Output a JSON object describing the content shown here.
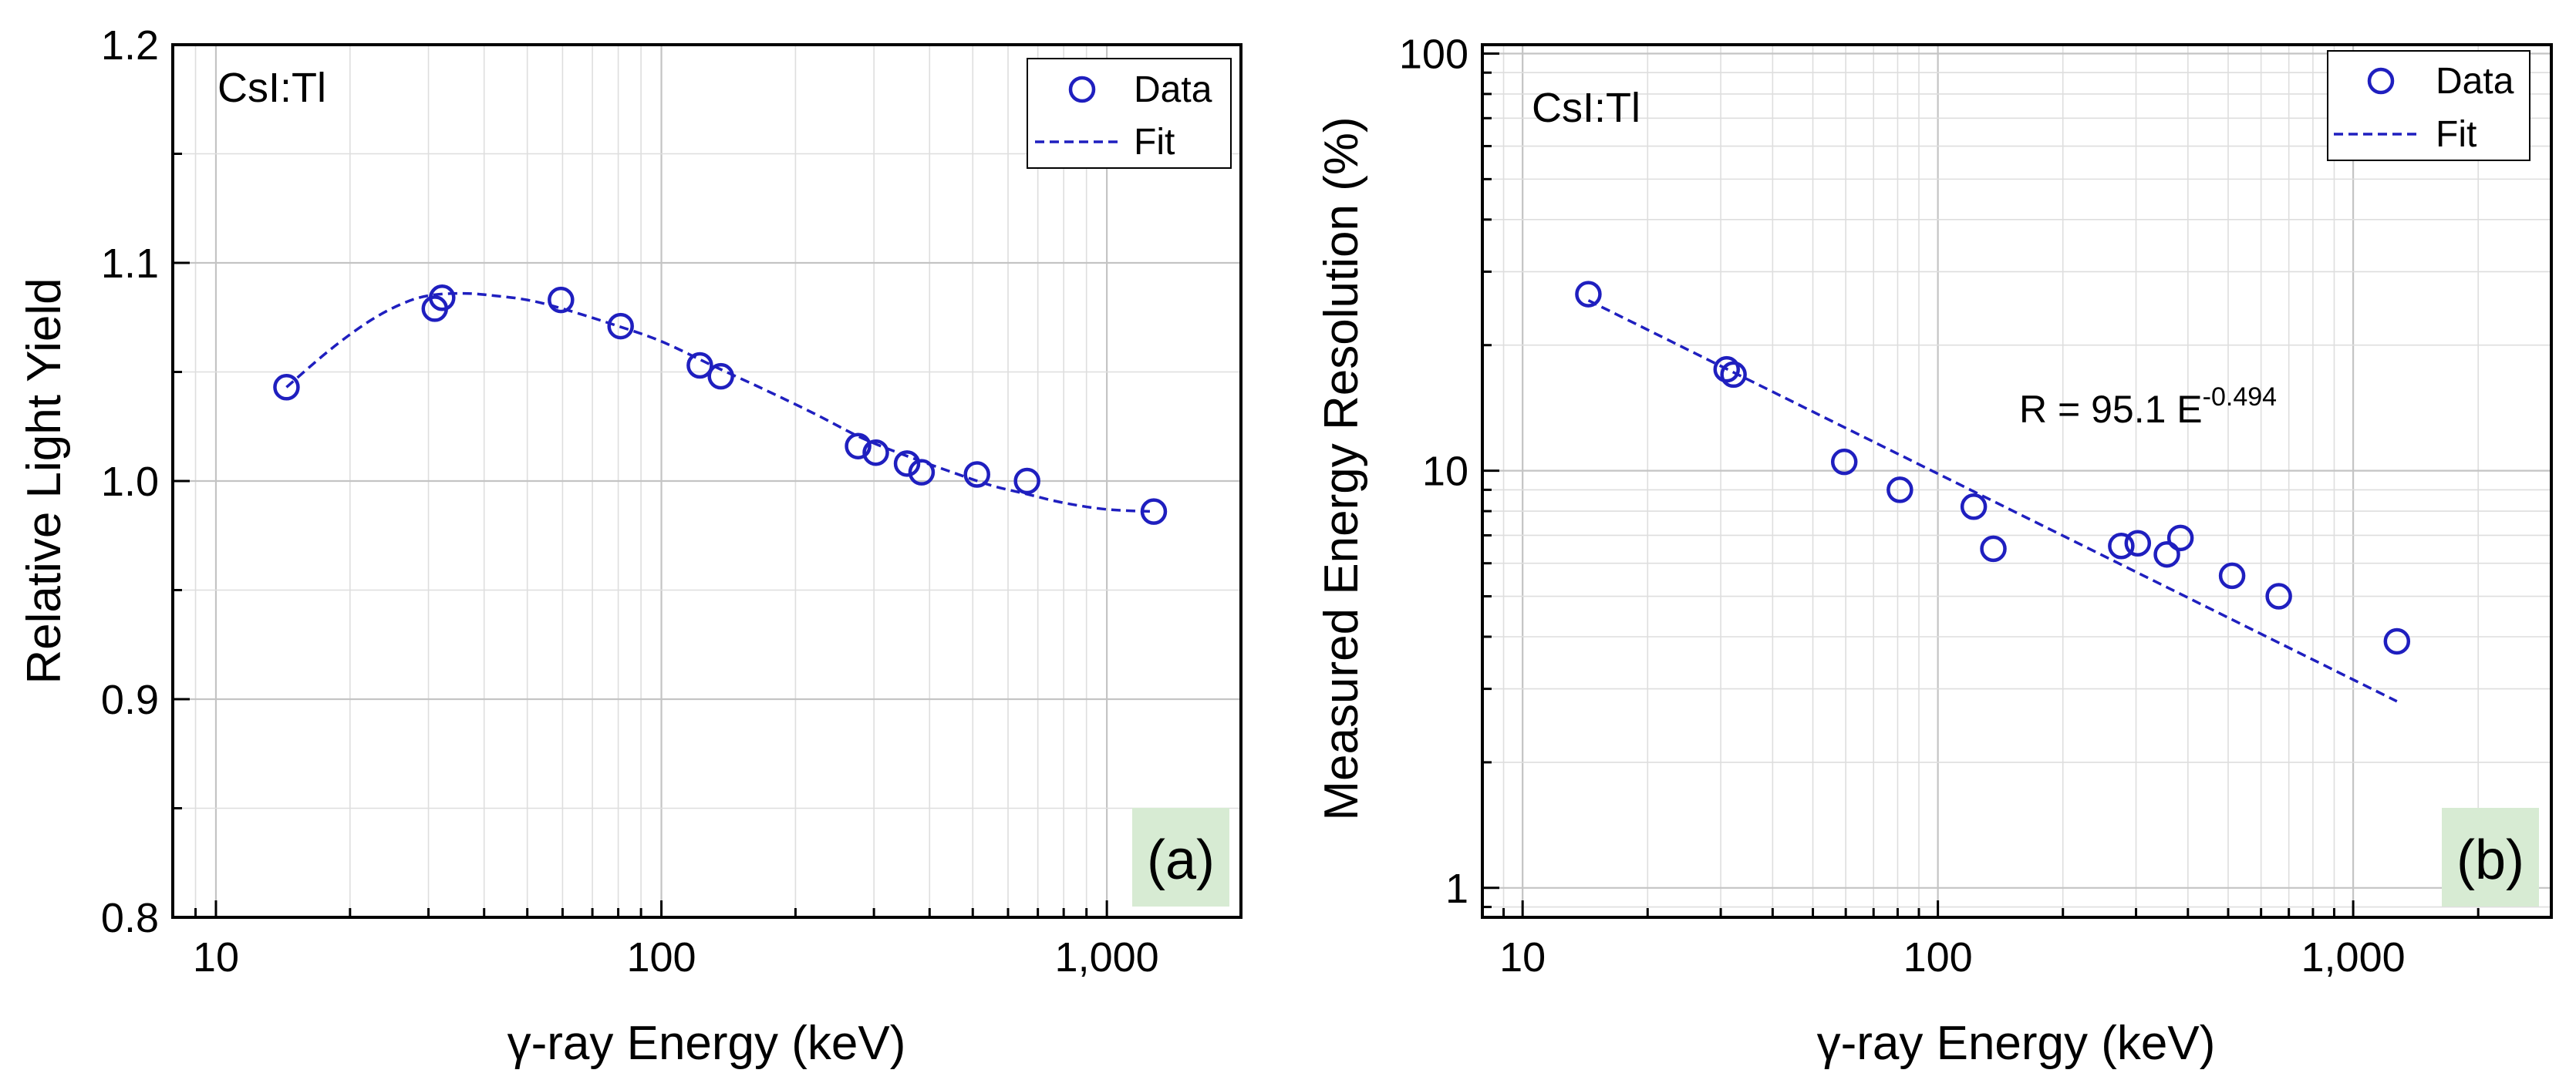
{
  "chart_data": [
    {
      "type": "scatter",
      "panel_label": "(a)",
      "annotation": "CsI:Tl",
      "xlabel": "γ-ray Energy (keV)",
      "ylabel": "Relative Light Yield",
      "xscale": "log",
      "xlim": [
        8,
        2000
      ],
      "ylim": [
        0.8,
        1.2
      ],
      "xticks": [
        10,
        100,
        1000
      ],
      "xtick_labels": [
        "10",
        "100",
        "1,000"
      ],
      "yticks": [
        0.8,
        0.9,
        1.0,
        1.1,
        1.2
      ],
      "ytick_labels": [
        "0.8",
        "0.9",
        "1.0",
        "1.1",
        "1.2"
      ],
      "grid": true,
      "legend": {
        "position": "top-right",
        "entries": [
          "Data",
          "Fit"
        ]
      },
      "series": [
        {
          "name": "Data",
          "style": "open-circle",
          "x": [
            14.4,
            31,
            32.2,
            59.5,
            81,
            122,
            136,
            276.4,
            302.9,
            356,
            383.8,
            511,
            662,
            1274.5
          ],
          "y": [
            1.043,
            1.079,
            1.084,
            1.083,
            1.071,
            1.053,
            1.048,
            1.016,
            1.013,
            1.008,
            1.004,
            1.003,
            1.0,
            0.986
          ]
        },
        {
          "name": "Fit",
          "style": "dashed-line",
          "x": [
            14.4,
            18,
            22,
            26,
            30,
            36,
            42,
            50,
            60,
            80,
            100,
            130,
            170,
            220,
            280,
            350,
            450,
            550,
            662,
            800,
            1000,
            1274.5
          ],
          "y": [
            1.043,
            1.06,
            1.073,
            1.081,
            1.085,
            1.086,
            1.085,
            1.083,
            1.079,
            1.071,
            1.064,
            1.053,
            1.042,
            1.031,
            1.02,
            1.012,
            1.004,
            0.998,
            0.994,
            0.99,
            0.987,
            0.986
          ]
        }
      ]
    },
    {
      "type": "scatter",
      "panel_label": "(b)",
      "annotation": "CsI:Tl",
      "fit_equation": {
        "base": "R = 95.1 E",
        "exponent": "-0.494"
      },
      "xlabel": "γ-ray Energy (keV)",
      "ylabel": "Measured Energy Resolution (%)",
      "xscale": "log",
      "yscale": "log",
      "xlim": [
        8,
        3000
      ],
      "ylim": [
        0.85,
        105
      ],
      "xticks": [
        10,
        100,
        1000
      ],
      "xtick_labels": [
        "10",
        "100",
        "1,000"
      ],
      "yticks": [
        1,
        10,
        100
      ],
      "ytick_labels": [
        "1",
        "10",
        "100"
      ],
      "grid": true,
      "legend": {
        "position": "top-right",
        "entries": [
          "Data",
          "Fit"
        ]
      },
      "series": [
        {
          "name": "Data",
          "style": "open-circle",
          "x": [
            14.4,
            31,
            32.2,
            59.5,
            81,
            122,
            136,
            276.4,
            302.9,
            356,
            383.8,
            511,
            662,
            1274.5
          ],
          "y": [
            26.5,
            17.5,
            17.0,
            10.5,
            9.0,
            8.2,
            6.5,
            6.6,
            6.7,
            6.3,
            6.9,
            5.6,
            5.0,
            3.9
          ]
        },
        {
          "name": "Fit",
          "style": "dashed-line",
          "x": [
            14.4,
            1274.5
          ],
          "y": [
            25.6,
            2.8
          ]
        }
      ]
    }
  ]
}
